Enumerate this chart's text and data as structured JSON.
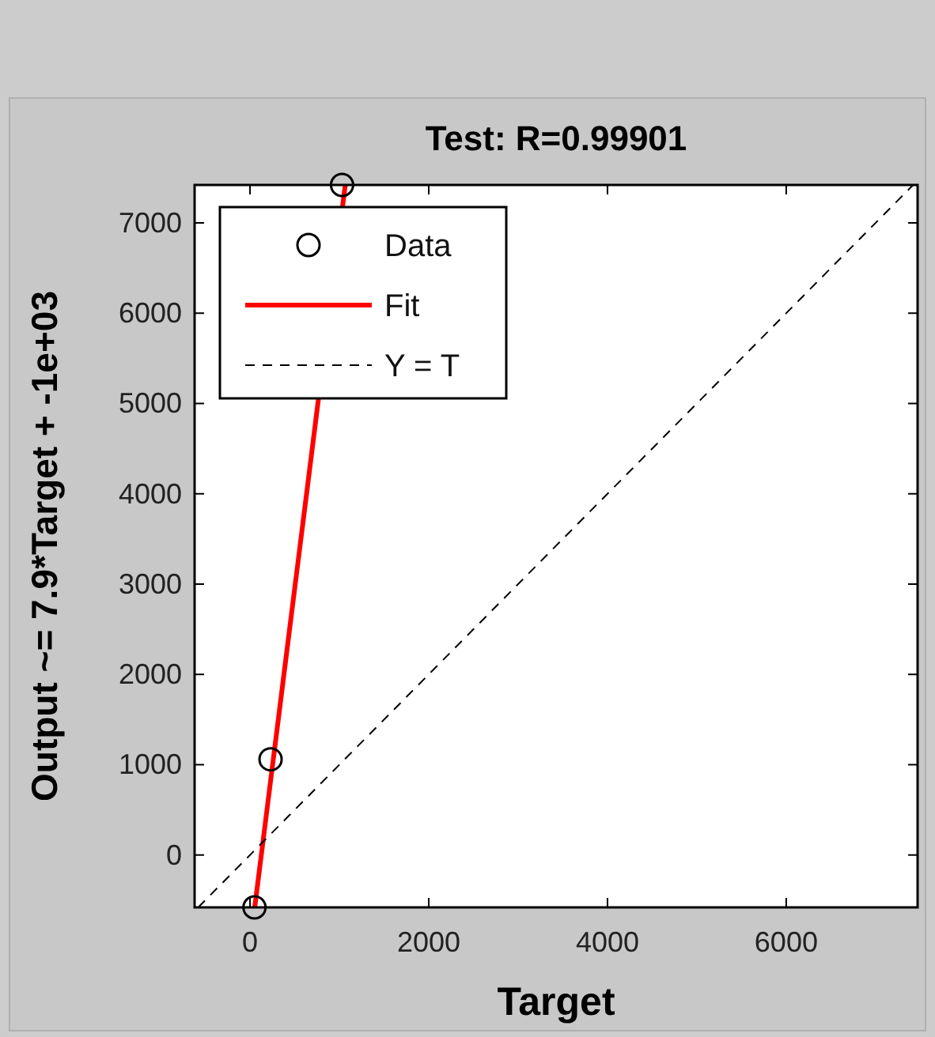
{
  "chart_data": {
    "type": "scatter",
    "title": "Test: R=0.99901",
    "xlabel": "Target",
    "ylabel": "Output ~= 7.9*Target + -1e+03",
    "xlim": [
      -620,
      7470
    ],
    "ylim": [
      -580,
      7420
    ],
    "xticks": [
      0,
      2000,
      4000,
      6000
    ],
    "yticks": [
      0,
      1000,
      2000,
      3000,
      4000,
      5000,
      6000,
      7000
    ],
    "grid": false,
    "legend": "top left",
    "series": [
      {
        "name": "Data",
        "color": "#000000",
        "marker": "circle",
        "x": [
          50,
          230,
          1030
        ],
        "values": [
          -580,
          1060,
          7420
        ]
      },
      {
        "name": "Fit",
        "type": "line",
        "color": "#ff0000",
        "line_style": "solid",
        "marker": "none",
        "x": [
          53,
          1066
        ],
        "values": [
          -580,
          7420
        ]
      },
      {
        "name": "Y = T",
        "type": "line",
        "color": "#000000",
        "line_style": "dashed",
        "marker": "none",
        "x": [
          -580,
          7420
        ],
        "values": [
          -580,
          7420
        ]
      }
    ]
  }
}
